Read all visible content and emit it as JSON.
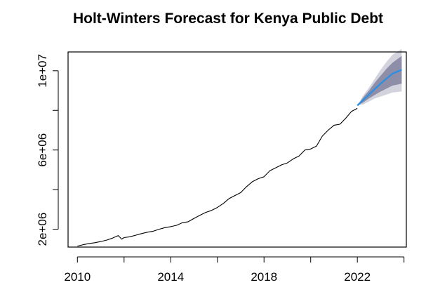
{
  "chart_data": {
    "type": "line",
    "title": "Holt-Winters Forecast for Kenya Public Debt",
    "xlabel": "",
    "ylabel": "",
    "xlim": [
      2009.6,
      2024.1
    ],
    "ylim": [
      1100000,
      10950000
    ],
    "x_ticks": [
      {
        "value": 2010,
        "label": "2010"
      },
      {
        "value": 2014,
        "label": "2014"
      },
      {
        "value": 2018,
        "label": "2018"
      },
      {
        "value": 2022,
        "label": "2022"
      }
    ],
    "y_ticks": [
      {
        "value": 2000000,
        "label": "2e+06",
        "labeled": true
      },
      {
        "value": 4000000,
        "label": "",
        "labeled": false
      },
      {
        "value": 6000000,
        "label": "6e+06",
        "labeled": true
      },
      {
        "value": 8000000,
        "label": "",
        "labeled": false
      },
      {
        "value": 10000000,
        "label": "1e+07",
        "labeled": true
      }
    ],
    "grid": false,
    "series": [
      {
        "role": "observed",
        "color": "#000000",
        "x": [
          2010.0,
          2010.25,
          2010.5,
          2010.75,
          2011.0,
          2011.25,
          2011.5,
          2011.75,
          2011.9,
          2012.0,
          2012.25,
          2012.5,
          2012.75,
          2013.0,
          2013.25,
          2013.5,
          2013.75,
          2014.0,
          2014.25,
          2014.5,
          2014.75,
          2015.0,
          2015.25,
          2015.5,
          2015.75,
          2016.0,
          2016.25,
          2016.5,
          2016.75,
          2017.0,
          2017.25,
          2017.5,
          2017.75,
          2018.0,
          2018.25,
          2018.5,
          2018.75,
          2019.0,
          2019.25,
          2019.5,
          2019.75,
          2020.0,
          2020.25,
          2020.5,
          2020.75,
          2021.0,
          2021.25,
          2021.5,
          2021.75,
          2022.0
        ],
        "values": [
          1150000,
          1220000,
          1280000,
          1320000,
          1380000,
          1450000,
          1550000,
          1680000,
          1500000,
          1580000,
          1620000,
          1700000,
          1780000,
          1850000,
          1900000,
          2000000,
          2080000,
          2130000,
          2200000,
          2330000,
          2380000,
          2550000,
          2700000,
          2850000,
          2950000,
          3100000,
          3300000,
          3550000,
          3700000,
          3850000,
          4150000,
          4400000,
          4550000,
          4650000,
          4950000,
          5100000,
          5250000,
          5350000,
          5550000,
          5700000,
          6000000,
          6050000,
          6200000,
          6700000,
          7000000,
          7250000,
          7300000,
          7600000,
          7950000,
          8100000
        ]
      },
      {
        "role": "forecast",
        "color": "#2f8fe0",
        "x": [
          2022.0,
          2022.25,
          2022.5,
          2022.75,
          2023.0,
          2023.25,
          2023.5,
          2023.9
        ],
        "values": [
          8250000,
          8520000,
          8800000,
          9080000,
          9350000,
          9600000,
          9850000,
          10050000
        ],
        "upper_80": [
          8250000,
          8650000,
          9000000,
          9400000,
          9750000,
          10100000,
          10400000,
          10750000
        ],
        "lower_80": [
          8250000,
          8400000,
          8600000,
          8780000,
          8950000,
          9100000,
          9250000,
          9350000
        ],
        "upper_95": [
          8250000,
          8750000,
          9150000,
          9600000,
          10050000,
          10450000,
          10800000,
          11100000
        ],
        "lower_95": [
          8250000,
          8300000,
          8450000,
          8600000,
          8700000,
          8800000,
          8900000,
          8950000
        ],
        "color_80": "#8e8ea8",
        "color_95": "#d3d3de"
      }
    ]
  }
}
